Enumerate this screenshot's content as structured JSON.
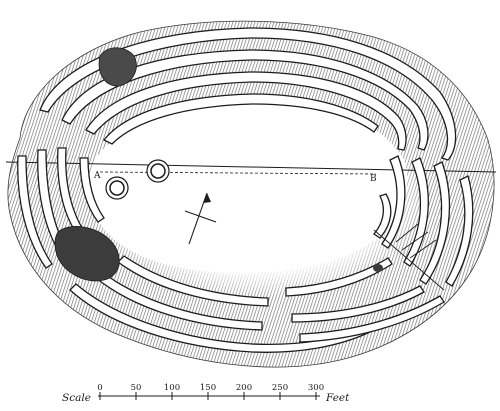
{
  "figure": {
    "point_labels": [
      "A",
      "B"
    ],
    "scale": {
      "prefix": "Scale",
      "ticks": [
        "0",
        "50",
        "100",
        "150",
        "200",
        "250",
        "300"
      ],
      "unit": "Feet"
    },
    "colors": {
      "ink": "#1c1c1c",
      "ground_shading": "#8a8a8a",
      "paper": "#ffffff"
    }
  }
}
